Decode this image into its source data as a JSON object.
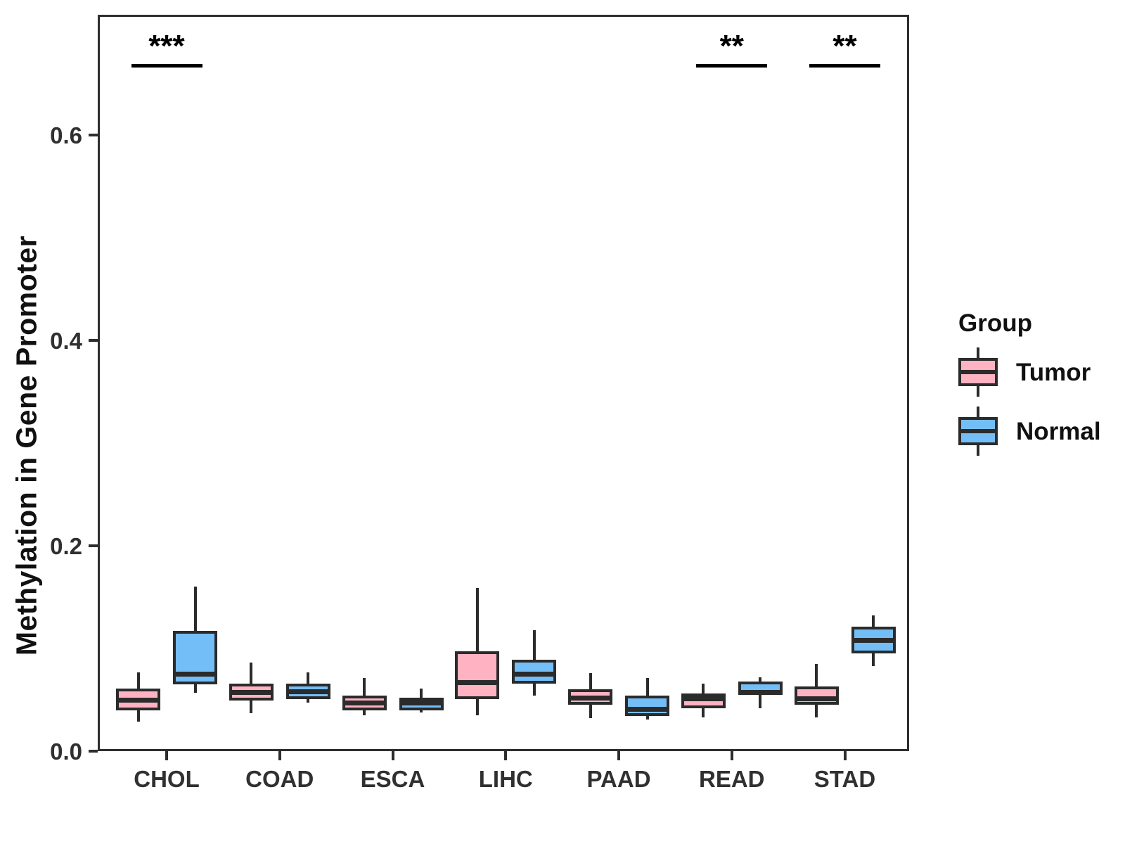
{
  "chart_data": {
    "type": "boxplot",
    "title": "",
    "xlabel": "",
    "ylabel": "Methylation in Gene Promoter",
    "yticks": [
      0.0,
      0.2,
      0.4,
      0.6
    ],
    "ylim": [
      0,
      0.717
    ],
    "grid": false,
    "categories": [
      "CHOL",
      "COAD",
      "ESCA",
      "LIHC",
      "PAAD",
      "READ",
      "STAD"
    ],
    "series": [
      {
        "name": "Tumor",
        "color": "#FFB3C2",
        "boxes": [
          {
            "low": 0.029,
            "q1": 0.04,
            "median": 0.05,
            "q3": 0.061,
            "high": 0.077
          },
          {
            "low": 0.037,
            "q1": 0.049,
            "median": 0.057,
            "q3": 0.066,
            "high": 0.086
          },
          {
            "low": 0.035,
            "q1": 0.04,
            "median": 0.047,
            "q3": 0.054,
            "high": 0.071
          },
          {
            "low": 0.035,
            "q1": 0.051,
            "median": 0.067,
            "q3": 0.097,
            "high": 0.159
          },
          {
            "low": 0.032,
            "q1": 0.045,
            "median": 0.052,
            "q3": 0.06,
            "high": 0.076
          },
          {
            "low": 0.033,
            "q1": 0.042,
            "median": 0.051,
            "q3": 0.056,
            "high": 0.066
          },
          {
            "low": 0.033,
            "q1": 0.045,
            "median": 0.051,
            "q3": 0.063,
            "high": 0.085
          }
        ]
      },
      {
        "name": "Normal",
        "color": "#74BEF8",
        "boxes": [
          {
            "low": 0.057,
            "q1": 0.065,
            "median": 0.075,
            "q3": 0.117,
            "high": 0.16
          },
          {
            "low": 0.047,
            "q1": 0.051,
            "median": 0.058,
            "q3": 0.066,
            "high": 0.077
          },
          {
            "low": 0.038,
            "q1": 0.04,
            "median": 0.047,
            "q3": 0.052,
            "high": 0.061
          },
          {
            "low": 0.054,
            "q1": 0.066,
            "median": 0.075,
            "q3": 0.089,
            "high": 0.118
          },
          {
            "low": 0.031,
            "q1": 0.034,
            "median": 0.041,
            "q3": 0.054,
            "high": 0.071
          },
          {
            "low": 0.042,
            "q1": 0.055,
            "median": 0.057,
            "q3": 0.068,
            "high": 0.072
          },
          {
            "low": 0.083,
            "q1": 0.095,
            "median": 0.108,
            "q3": 0.121,
            "high": 0.132
          }
        ]
      }
    ],
    "significance": [
      {
        "category": "CHOL",
        "label": "***"
      },
      {
        "category": "READ",
        "label": "**"
      },
      {
        "category": "STAD",
        "label": "**"
      }
    ],
    "legend": {
      "title": "Group",
      "position": "right",
      "items": [
        {
          "label": "Tumor",
          "color": "#FFB3C2"
        },
        {
          "label": "Normal",
          "color": "#74BEF8"
        }
      ]
    },
    "stroke_color": "#2b2b2b",
    "text_color": "#303030"
  }
}
